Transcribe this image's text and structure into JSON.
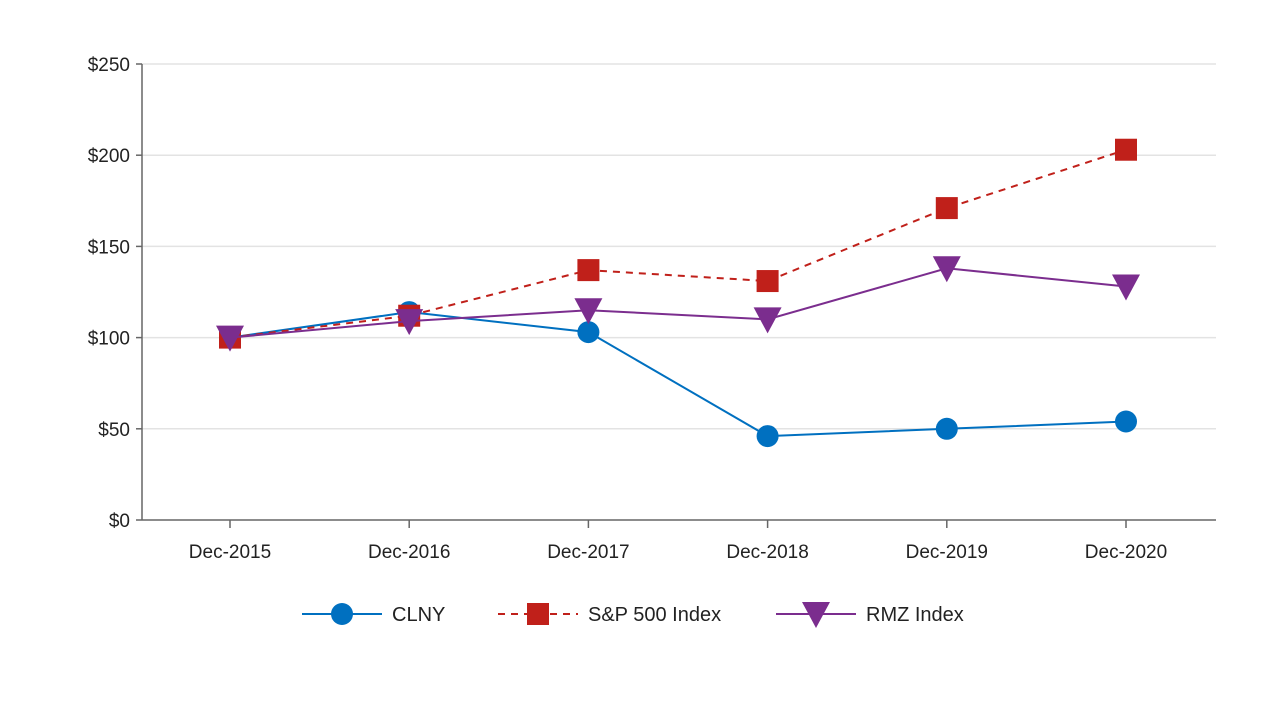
{
  "chart_data": {
    "type": "line",
    "title": "",
    "xlabel": "",
    "ylabel": "",
    "categories": [
      "Dec-2015",
      "Dec-2016",
      "Dec-2017",
      "Dec-2018",
      "Dec-2019",
      "Dec-2020"
    ],
    "ylim": [
      0,
      250
    ],
    "yticks": [
      0,
      50,
      100,
      150,
      200,
      250
    ],
    "ytick_labels": [
      "$0",
      "$50",
      "$100",
      "$150",
      "$200",
      "$250"
    ],
    "grid": "horizontal",
    "legend_position": "bottom-center",
    "series": [
      {
        "name": "CLNY",
        "values": [
          100,
          114,
          103,
          46,
          50,
          54
        ],
        "color": "#0070c0",
        "marker": "circle",
        "line_style": "solid"
      },
      {
        "name": "S&P 500 Index",
        "values": [
          100,
          112,
          137,
          131,
          171,
          203
        ],
        "color": "#c0201a",
        "marker": "square",
        "line_style": "dashed"
      },
      {
        "name": "RMZ Index",
        "values": [
          100,
          109,
          115,
          110,
          138,
          128
        ],
        "color": "#7b2d8e",
        "marker": "triangle-down",
        "line_style": "solid"
      }
    ]
  }
}
